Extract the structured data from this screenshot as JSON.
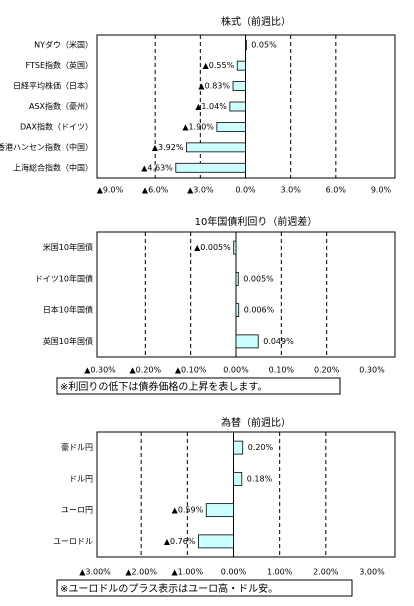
{
  "chart_data": [
    {
      "type": "bar",
      "orientation": "horizontal",
      "title": "株式（前週比）",
      "categories": [
        "NYダウ（米国）",
        "FTSE指数（英国）",
        "日経平均株価（日本）",
        "ASX指数（豪州）",
        "DAX指数（ドイツ）",
        "香港ハンセン指数（中国）",
        "上海総合指数（中国）"
      ],
      "values": [
        0.05,
        -0.55,
        -0.83,
        -1.04,
        -1.9,
        -3.92,
        -4.63
      ],
      "value_labels": [
        "0.05%",
        "▲0.55%",
        "▲0.83%",
        "▲1.04%",
        "▲1.90%",
        "▲3.92%",
        "▲4.63%"
      ],
      "color": "#ccffff",
      "negative_label_color": "#ff0000",
      "xlim": [
        -9,
        9
      ],
      "xticks": [
        {
          "value": -9,
          "label": "▲9.0%"
        },
        {
          "value": -6,
          "label": "▲6.0%"
        },
        {
          "value": -3,
          "label": "▲3.0%"
        },
        {
          "value": 0,
          "label": "0.0%"
        },
        {
          "value": 3,
          "label": "3.0%"
        },
        {
          "value": 6,
          "label": "6.0%"
        },
        {
          "value": 9,
          "label": "9.0%"
        }
      ],
      "grid": true
    },
    {
      "type": "bar",
      "orientation": "horizontal",
      "title": "10年国債利回り（前週差）",
      "categories": [
        "米国10年国債",
        "ドイツ10年国債",
        "日本10年国債",
        "英国10年国債"
      ],
      "values": [
        -0.005,
        0.005,
        0.006,
        0.049
      ],
      "value_labels": [
        "▲0.005%",
        "0.005%",
        "0.006%",
        "0.049%"
      ],
      "color": "#ccffff",
      "negative_label_color": "#ff0000",
      "xlim": [
        -0.3,
        0.3
      ],
      "xticks": [
        {
          "value": -0.3,
          "label": "▲0.30%"
        },
        {
          "value": -0.2,
          "label": "▲0.20%"
        },
        {
          "value": -0.1,
          "label": "▲0.10%"
        },
        {
          "value": 0,
          "label": "0.00%"
        },
        {
          "value": 0.1,
          "label": "0.10%"
        },
        {
          "value": 0.2,
          "label": "0.20%"
        },
        {
          "value": 0.3,
          "label": "0.30%"
        }
      ],
      "grid": true,
      "note": "※利回りの低下は債券価格の上昇を表します。"
    },
    {
      "type": "bar",
      "orientation": "horizontal",
      "title": "為替（前週比）",
      "categories": [
        "豪ドル円",
        "ドル円",
        "ユーロ円",
        "ユーロドル"
      ],
      "values": [
        0.2,
        0.18,
        -0.59,
        -0.76
      ],
      "value_labels": [
        "0.20%",
        "0.18%",
        "▲0.59%",
        "▲0.76%"
      ],
      "color": "#ccffff",
      "negative_label_color": "#ff0000",
      "xlim": [
        -3,
        3
      ],
      "xticks": [
        {
          "value": -3,
          "label": "▲3.00%"
        },
        {
          "value": -2,
          "label": "▲2.00%"
        },
        {
          "value": -1,
          "label": "▲1.00%"
        },
        {
          "value": 0,
          "label": "0.00%"
        },
        {
          "value": 1,
          "label": "1.00%"
        },
        {
          "value": 2,
          "label": "2.00%"
        },
        {
          "value": 3,
          "label": "3.00%"
        }
      ],
      "grid": true,
      "note": "※ユーロドルのプラス表示はユーロ高・ドル安。"
    }
  ]
}
